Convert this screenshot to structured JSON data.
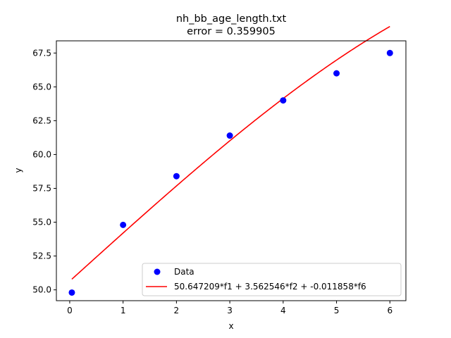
{
  "chart_data": {
    "type": "scatter",
    "title_line1": "nh_bb_age_length.txt",
    "title_line2": "error  = 0.359905",
    "xlabel": "x",
    "ylabel": "y",
    "xlim": [
      -0.25,
      6.3
    ],
    "ylim": [
      49.2,
      68.4
    ],
    "xticks": [
      0,
      1,
      2,
      3,
      4,
      5,
      6
    ],
    "xtick_labels": [
      "0",
      "1",
      "2",
      "3",
      "4",
      "5",
      "6"
    ],
    "yticks": [
      50.0,
      52.5,
      55.0,
      57.5,
      60.0,
      62.5,
      65.0,
      67.5
    ],
    "ytick_labels": [
      "50.0",
      "52.5",
      "55.0",
      "57.5",
      "60.0",
      "62.5",
      "65.0",
      "67.5"
    ],
    "grid": false,
    "legend_position": "bottom-right",
    "series": [
      {
        "name": "Data",
        "kind": "scatter",
        "color": "#0000ff",
        "x": [
          0.04,
          1,
          2,
          3,
          4,
          5,
          6
        ],
        "y": [
          49.8,
          54.8,
          58.4,
          61.4,
          64.0,
          66.0,
          67.5
        ]
      },
      {
        "name": "50.647209*f1 + 3.562546*f2 + -0.011858*f6",
        "kind": "line",
        "color": "#ff0000",
        "equation": {
          "c1": 50.647209,
          "c2": 3.562546,
          "c6": -0.011858
        },
        "x_range": [
          0.04,
          6
        ]
      }
    ]
  }
}
